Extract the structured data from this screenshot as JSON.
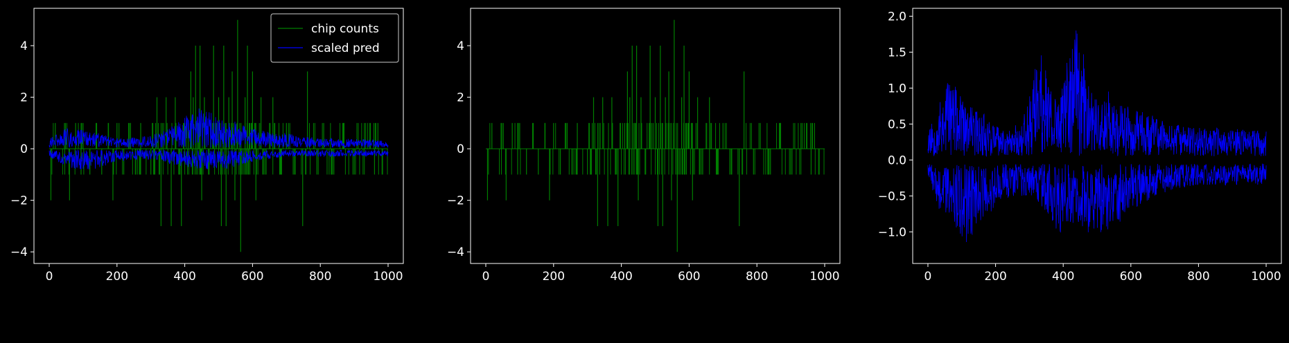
{
  "colors": {
    "background": "#000000",
    "axes": "#ffffff",
    "counts": "#008000",
    "pred": "#0000ff"
  },
  "chart_data": [
    {
      "type": "line",
      "title": "",
      "xlabel": "",
      "ylabel": "",
      "xlim": [
        -45,
        1045
      ],
      "ylim": [
        -4.45,
        5.45
      ],
      "xticks": [
        0,
        200,
        400,
        600,
        800,
        1000
      ],
      "yticks": [
        -4,
        -2,
        0,
        2,
        4
      ],
      "grid": false,
      "legend": "top-right",
      "series": [
        {
          "name": "chip counts",
          "color": "#008000",
          "style": "stems",
          "x": [
            0,
            5,
            9,
            18,
            45,
            60,
            78,
            94,
            100,
            120,
            140,
            155,
            175,
            188,
            200,
            220,
            240,
            255,
            270,
            300,
            318,
            330,
            345,
            360,
            372,
            390,
            410,
            418,
            425,
            432,
            440,
            445,
            450,
            458,
            470,
            485,
            500,
            508,
            515,
            522,
            530,
            540,
            548,
            556,
            565,
            578,
            585,
            592,
            600,
            610,
            625,
            640,
            660,
            680,
            700,
            720,
            748,
            762,
            790,
            810,
            840,
            870,
            900,
            930,
            960,
            970,
            990
          ],
          "values": [
            0,
            -2,
            0,
            1,
            1,
            -2,
            1,
            -1,
            1,
            -1,
            1,
            -1,
            1,
            -2,
            1,
            -1,
            1,
            -1,
            1,
            -1,
            2,
            -3,
            2,
            -3,
            2,
            -3,
            1,
            3,
            2,
            4,
            1,
            4,
            -2,
            2,
            -1,
            4,
            2,
            -3,
            4,
            -3,
            2,
            3,
            -2,
            5,
            -4,
            2,
            4,
            -1,
            3,
            -2,
            2,
            -1,
            2,
            -1,
            1,
            -1,
            -3,
            3,
            -1,
            1,
            -1,
            1,
            -1,
            1,
            -1,
            1,
            0
          ]
        },
        {
          "name": "scaled pred",
          "color": "#0000ff",
          "style": "band",
          "upper": [
            {
              "x": 0,
              "y": 0.4
            },
            {
              "x": 50,
              "y": 0.8
            },
            {
              "x": 120,
              "y": 0.7
            },
            {
              "x": 200,
              "y": 0.4
            },
            {
              "x": 300,
              "y": 0.5
            },
            {
              "x": 360,
              "y": 0.9
            },
            {
              "x": 440,
              "y": 1.6
            },
            {
              "x": 520,
              "y": 1.2
            },
            {
              "x": 600,
              "y": 0.8
            },
            {
              "x": 700,
              "y": 0.6
            },
            {
              "x": 800,
              "y": 0.4
            },
            {
              "x": 900,
              "y": 0.4
            },
            {
              "x": 1000,
              "y": 0.3
            }
          ],
          "lower": [
            {
              "x": 0,
              "y": -0.3
            },
            {
              "x": 50,
              "y": -0.7
            },
            {
              "x": 120,
              "y": -0.9
            },
            {
              "x": 200,
              "y": -0.5
            },
            {
              "x": 300,
              "y": -0.4
            },
            {
              "x": 360,
              "y": -0.6
            },
            {
              "x": 440,
              "y": -0.8
            },
            {
              "x": 520,
              "y": -0.8
            },
            {
              "x": 600,
              "y": -0.5
            },
            {
              "x": 700,
              "y": -0.3
            },
            {
              "x": 800,
              "y": -0.3
            },
            {
              "x": 900,
              "y": -0.3
            },
            {
              "x": 1000,
              "y": -0.3
            }
          ],
          "floor": 0.05
        }
      ]
    },
    {
      "type": "line",
      "title": "",
      "xlabel": "",
      "ylabel": "",
      "xlim": [
        -45,
        1045
      ],
      "ylim": [
        -4.45,
        5.45
      ],
      "xticks": [
        0,
        200,
        400,
        600,
        800,
        1000
      ],
      "yticks": [
        -4,
        -2,
        0,
        2,
        4
      ],
      "grid": false,
      "legend": "none",
      "series": [
        {
          "color": "#008000",
          "style": "stems",
          "x": [
            0,
            5,
            9,
            18,
            45,
            60,
            78,
            94,
            100,
            120,
            140,
            155,
            175,
            188,
            200,
            220,
            240,
            255,
            270,
            300,
            318,
            330,
            345,
            360,
            372,
            390,
            410,
            418,
            425,
            432,
            440,
            445,
            450,
            458,
            470,
            485,
            500,
            508,
            515,
            522,
            530,
            540,
            548,
            556,
            565,
            578,
            585,
            592,
            600,
            610,
            625,
            640,
            660,
            680,
            700,
            720,
            748,
            762,
            790,
            810,
            840,
            870,
            900,
            930,
            960,
            970,
            990
          ],
          "values": [
            0,
            -2,
            0,
            1,
            1,
            -2,
            1,
            -1,
            1,
            -1,
            1,
            -1,
            1,
            -2,
            1,
            -1,
            1,
            -1,
            1,
            -1,
            2,
            -3,
            2,
            -3,
            2,
            -3,
            1,
            3,
            2,
            4,
            1,
            4,
            -2,
            2,
            -1,
            4,
            2,
            -3,
            4,
            -3,
            2,
            3,
            -2,
            5,
            -4,
            2,
            4,
            -1,
            3,
            -2,
            2,
            -1,
            2,
            -1,
            1,
            -1,
            -3,
            3,
            -1,
            1,
            -1,
            1,
            -1,
            1,
            -1,
            1,
            0
          ]
        }
      ]
    },
    {
      "type": "line",
      "title": "",
      "xlabel": "",
      "ylabel": "",
      "xlim": [
        -45,
        1045
      ],
      "ylim": [
        -1.44,
        2.11
      ],
      "xticks": [
        0,
        200,
        400,
        600,
        800,
        1000
      ],
      "yticks": [
        -1.0,
        -0.5,
        0.0,
        0.5,
        1.0,
        1.5,
        2.0
      ],
      "grid": false,
      "legend": "none",
      "series": [
        {
          "color": "#0000ff",
          "style": "band",
          "upper": [
            {
              "x": 0,
              "y": 0.45
            },
            {
              "x": 30,
              "y": 0.7
            },
            {
              "x": 60,
              "y": 1.25
            },
            {
              "x": 110,
              "y": 0.75
            },
            {
              "x": 160,
              "y": 0.7
            },
            {
              "x": 220,
              "y": 0.4
            },
            {
              "x": 280,
              "y": 0.55
            },
            {
              "x": 330,
              "y": 1.55
            },
            {
              "x": 380,
              "y": 0.8
            },
            {
              "x": 440,
              "y": 1.95
            },
            {
              "x": 480,
              "y": 1.0
            },
            {
              "x": 520,
              "y": 1.05
            },
            {
              "x": 560,
              "y": 0.8
            },
            {
              "x": 620,
              "y": 0.7
            },
            {
              "x": 700,
              "y": 0.55
            },
            {
              "x": 780,
              "y": 0.45
            },
            {
              "x": 880,
              "y": 0.45
            },
            {
              "x": 1000,
              "y": 0.4
            }
          ],
          "lower": [
            {
              "x": 0,
              "y": -0.3
            },
            {
              "x": 30,
              "y": -0.7
            },
            {
              "x": 70,
              "y": -0.8
            },
            {
              "x": 110,
              "y": -1.25
            },
            {
              "x": 160,
              "y": -0.85
            },
            {
              "x": 220,
              "y": -0.55
            },
            {
              "x": 280,
              "y": -0.5
            },
            {
              "x": 330,
              "y": -0.6
            },
            {
              "x": 380,
              "y": -1.05
            },
            {
              "x": 440,
              "y": -0.85
            },
            {
              "x": 480,
              "y": -1.05
            },
            {
              "x": 540,
              "y": -1.0
            },
            {
              "x": 600,
              "y": -0.7
            },
            {
              "x": 700,
              "y": -0.45
            },
            {
              "x": 800,
              "y": -0.35
            },
            {
              "x": 900,
              "y": -0.35
            },
            {
              "x": 1000,
              "y": -0.35
            }
          ],
          "floor": 0.05
        }
      ]
    }
  ]
}
